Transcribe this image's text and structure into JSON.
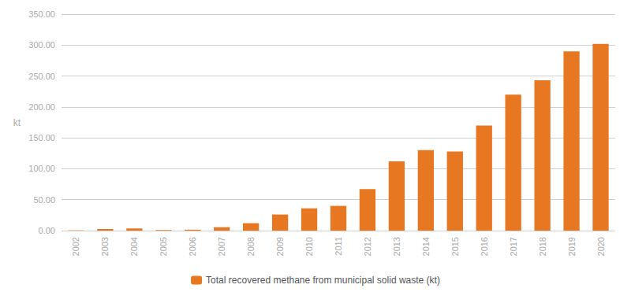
{
  "chart_data": {
    "type": "bar",
    "categories": [
      "2002",
      "2003",
      "2004",
      "2005",
      "2006",
      "2007",
      "2008",
      "2009",
      "2010",
      "2011",
      "2012",
      "2013",
      "2014",
      "2015",
      "2016",
      "2017",
      "2018",
      "2019",
      "2020"
    ],
    "series": [
      {
        "name": "Total recovered methane from municipal solid waste (kt)",
        "color": "#E87722",
        "values": [
          0.5,
          2.5,
          3.5,
          1.0,
          1.5,
          5.5,
          12.0,
          26.0,
          36.0,
          40.0,
          67.0,
          112.0,
          130.0,
          128.0,
          170.0,
          220.0,
          243.0,
          290.0,
          302.0
        ]
      }
    ],
    "ylabel": "kt",
    "ylim": [
      0,
      350
    ],
    "yticks": [
      {
        "value": 0,
        "label": "0.00"
      },
      {
        "value": 50,
        "label": "50.00"
      },
      {
        "value": 100,
        "label": "100.00"
      },
      {
        "value": 150,
        "label": "150.00"
      },
      {
        "value": 200,
        "label": "200.00"
      },
      {
        "value": 250,
        "label": "250.00"
      },
      {
        "value": 300,
        "label": "300.00"
      },
      {
        "value": 350,
        "label": "350.00"
      }
    ],
    "grid": true,
    "legend": "bottom"
  }
}
